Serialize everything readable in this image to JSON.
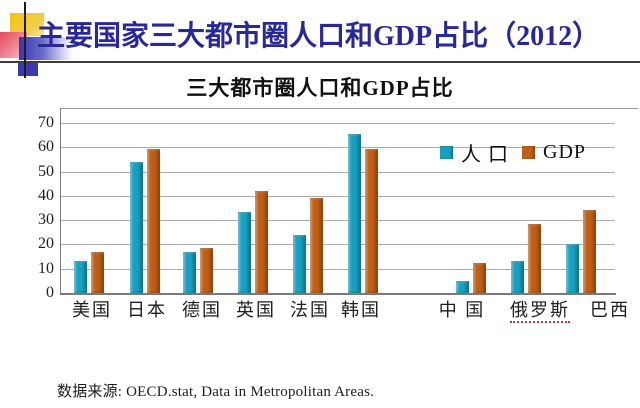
{
  "slide_title": "主要国家三大都市圈人口和GDP占比（2012）",
  "source_note": "数据来源: OECD.stat, Data in Metropolitan Areas.",
  "colors": {
    "population_bar": "#18A0C2",
    "gdp_bar": "#C05F17",
    "slide_title_text": "#28289A",
    "russia_underline": "#CC3333"
  },
  "chart_data": {
    "type": "bar",
    "title": "三大都市圈人口和GDP占比",
    "categories": [
      "美国",
      "日本",
      "德国",
      "英国",
      "法国",
      "韩国",
      "中 国",
      "俄罗斯",
      "巴西"
    ],
    "series": [
      {
        "name": "人 口",
        "color": "#18A0C2",
        "values": [
          13,
          54,
          17,
          33.5,
          24,
          65.5,
          5,
          13,
          20
        ]
      },
      {
        "name": "GDP",
        "color": "#C05F17",
        "values": [
          17,
          59.5,
          18.5,
          42,
          39,
          59.5,
          12.5,
          28.5,
          34
        ]
      }
    ],
    "xlabel": "",
    "ylabel": "",
    "ylim": [
      0,
      70
    ],
    "yticks": [
      0,
      10,
      20,
      30,
      40,
      50,
      60,
      70
    ],
    "grid": true,
    "legend_position": "inside-upper-right",
    "underlined_category": "俄罗斯",
    "category_gap_after": "韩国"
  }
}
